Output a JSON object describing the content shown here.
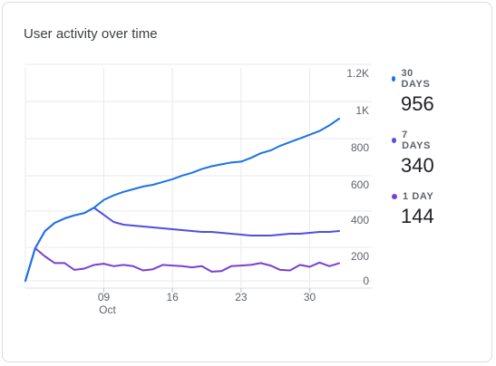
{
  "card": {
    "title": "User activity over time"
  },
  "legend": [
    {
      "label": "30 DAYS",
      "value": "956",
      "color": "#1a73e8"
    },
    {
      "label": "7 DAYS",
      "value": "340",
      "color": "#4f4fe0"
    },
    {
      "label": "1 DAY",
      "value": "144",
      "color": "#7b3fd1"
    }
  ],
  "chart_data": {
    "type": "line",
    "title": "User activity over time",
    "xlabel": "",
    "ylabel": "",
    "ylim": [
      0,
      1200
    ],
    "y_tick_labels": [
      "0",
      "200",
      "400",
      "600",
      "800",
      "1K",
      "1.2K"
    ],
    "x_tick_labels": [
      {
        "label": "09",
        "sub": "Oct",
        "date": "2023-10-09"
      },
      {
        "label": "16",
        "sub": "",
        "date": "2023-10-16"
      },
      {
        "label": "23",
        "sub": "",
        "date": "2023-10-23"
      },
      {
        "label": "30",
        "sub": "",
        "date": "2023-10-30"
      }
    ],
    "x": [
      "2023-10-01",
      "2023-10-02",
      "2023-10-03",
      "2023-10-04",
      "2023-10-05",
      "2023-10-06",
      "2023-10-07",
      "2023-10-08",
      "2023-10-09",
      "2023-10-10",
      "2023-10-11",
      "2023-10-12",
      "2023-10-13",
      "2023-10-14",
      "2023-10-15",
      "2023-10-16",
      "2023-10-17",
      "2023-10-18",
      "2023-10-19",
      "2023-10-20",
      "2023-10-21",
      "2023-10-22",
      "2023-10-23",
      "2023-10-24",
      "2023-10-25",
      "2023-10-26",
      "2023-10-27",
      "2023-10-28",
      "2023-10-29",
      "2023-10-30",
      "2023-10-31",
      "2023-11-01",
      "2023-11-02"
    ],
    "series": [
      {
        "name": "30 DAYS",
        "color": "#1a73e8",
        "values": [
          0,
          245,
          340,
          385,
          410,
          427,
          440,
          470,
          515,
          540,
          560,
          575,
          590,
          600,
          615,
          630,
          650,
          665,
          685,
          700,
          710,
          720,
          725,
          745,
          770,
          785,
          810,
          830,
          850,
          870,
          890,
          920,
          956
        ]
      },
      {
        "name": "7 DAYS",
        "color": "#4f4fe0",
        "values": [
          0,
          245,
          340,
          385,
          410,
          427,
          440,
          470,
          430,
          390,
          375,
          370,
          365,
          360,
          355,
          350,
          345,
          340,
          335,
          335,
          330,
          325,
          320,
          315,
          315,
          315,
          320,
          325,
          325,
          330,
          335,
          335,
          340
        ]
      },
      {
        "name": "1 DAY",
        "color": "#7b3fd1",
        "values": [
          0,
          245,
          200,
          145,
          145,
          90,
          100,
          130,
          140,
          120,
          130,
          120,
          85,
          95,
          130,
          125,
          120,
          110,
          120,
          75,
          80,
          120,
          125,
          130,
          145,
          125,
          90,
          85,
          130,
          115,
          150,
          120,
          144
        ]
      }
    ]
  }
}
